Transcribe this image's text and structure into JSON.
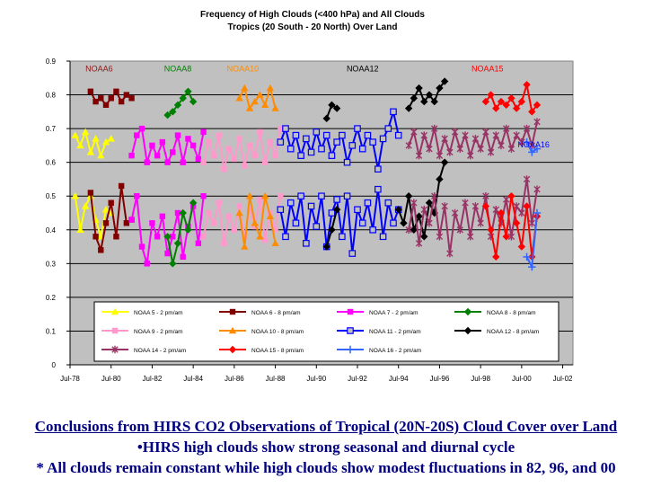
{
  "chart_data": {
    "type": "line",
    "title": "Frequency of High Clouds (<400 hPa) and All Clouds",
    "subtitle": "Tropics (20 South - 20 North) Over Land",
    "xlabel": "",
    "ylabel": "",
    "ylim": [
      0,
      0.9
    ],
    "xlim": [
      "Jul-78",
      "Jan-03"
    ],
    "grid": true,
    "legend_position": "bottom-inside",
    "plot_background": "#c0c0c0",
    "x_ticks": [
      "Jul-78",
      "Jul-80",
      "Jul-82",
      "Jul-84",
      "Jul-86",
      "Jul-88",
      "Jul-90",
      "Jul-92",
      "Jul-94",
      "Jul-96",
      "Jul-98",
      "Jul-00",
      "Jul-02"
    ],
    "y_ticks": [
      "0",
      "0.1",
      "0.2",
      "0.3",
      "0.4",
      "0.5",
      "0.6",
      "0.7",
      "0.8",
      "0.9"
    ],
    "annotations": [
      {
        "text": "NOAA6",
        "x": "Dec-79",
        "y": 0.885,
        "color": "#8b1a1a"
      },
      {
        "text": "NOAA8",
        "x": "Oct-83",
        "y": 0.885,
        "color": "#008000"
      },
      {
        "text": "NOAA10",
        "x": "Dec-86",
        "y": 0.885,
        "color": "#ff8c00"
      },
      {
        "text": "NOAA12",
        "x": "Oct-92",
        "y": 0.885,
        "color": "#000000"
      },
      {
        "text": "NOAA15",
        "x": "Nov-98",
        "y": 0.885,
        "color": "#ff0000"
      },
      {
        "text": "NOAA16",
        "x": "Feb-01",
        "y": 0.66,
        "color": "#0000ff"
      }
    ],
    "series": [
      {
        "name": "NOAA 5 - 2 pm/am",
        "color": "#ffff00",
        "marker": "triangle",
        "segments": [
          {
            "x": [
              1978.75,
              1979.0,
              1979.25,
              1979.5,
              1979.75,
              1980.0,
              1980.25,
              1980.5
            ],
            "values": [
              0.68,
              0.65,
              0.69,
              0.63,
              0.67,
              0.62,
              0.66,
              0.67
            ]
          },
          {
            "x": [
              1978.75,
              1979.0,
              1979.25,
              1979.5,
              1979.75,
              1980.0,
              1980.25,
              1980.5
            ],
            "values": [
              0.5,
              0.4,
              0.47,
              0.5,
              0.43,
              0.38,
              0.46,
              0.45
            ]
          }
        ]
      },
      {
        "name": "NOAA 6 - 8 pm/am",
        "color": "#800000",
        "marker": "square",
        "segments": [
          {
            "x": [
              1979.5,
              1979.75,
              1980.0,
              1980.25,
              1980.5,
              1980.75,
              1981.0,
              1981.25,
              1981.5
            ],
            "values": [
              0.81,
              0.78,
              0.79,
              0.77,
              0.79,
              0.81,
              0.78,
              0.8,
              0.79
            ]
          },
          {
            "x": [
              1979.5,
              1979.75,
              1980.0,
              1980.25,
              1980.5,
              1980.75,
              1981.0,
              1981.25,
              1981.5
            ],
            "values": [
              0.51,
              0.38,
              0.34,
              0.42,
              0.48,
              0.38,
              0.53,
              0.42,
              0.43
            ]
          }
        ]
      },
      {
        "name": "NOAA 7 - 2 pm/am",
        "color": "#ff00ff",
        "marker": "square",
        "segments": [
          {
            "x": [
              1981.5,
              1981.75,
              1982.0,
              1982.25,
              1982.5,
              1982.75,
              1983.0,
              1983.25,
              1983.5,
              1983.75,
              1984.0,
              1984.25,
              1984.5,
              1984.75,
              1985.0
            ],
            "values": [
              0.62,
              0.68,
              0.7,
              0.6,
              0.65,
              0.62,
              0.66,
              0.6,
              0.63,
              0.68,
              0.6,
              0.67,
              0.65,
              0.61,
              0.69
            ]
          },
          {
            "x": [
              1981.5,
              1981.75,
              1982.0,
              1982.25,
              1982.5,
              1982.75,
              1983.0,
              1983.25,
              1983.5,
              1983.75,
              1984.0,
              1984.25,
              1984.5,
              1984.75,
              1985.0
            ],
            "values": [
              0.43,
              0.5,
              0.35,
              0.3,
              0.42,
              0.38,
              0.44,
              0.33,
              0.38,
              0.45,
              0.32,
              0.41,
              0.47,
              0.36,
              0.5
            ]
          }
        ]
      },
      {
        "name": "NOAA 8 - 8 pm/am",
        "color": "#008000",
        "marker": "diamond",
        "segments": [
          {
            "x": [
              1983.25,
              1983.5,
              1983.75,
              1984.0,
              1984.25,
              1984.5
            ],
            "values": [
              0.74,
              0.75,
              0.77,
              0.79,
              0.81,
              0.78
            ]
          },
          {
            "x": [
              1983.25,
              1983.5,
              1983.75,
              1984.0,
              1984.25,
              1984.5
            ],
            "values": [
              0.38,
              0.3,
              0.36,
              0.45,
              0.4,
              0.48
            ]
          }
        ]
      },
      {
        "name": "NOAA 9 - 2 pm/am",
        "color": "#ff99cc",
        "marker": "square",
        "segments": [
          {
            "x": [
              1985.0,
              1985.25,
              1985.5,
              1985.75,
              1986.0,
              1986.25,
              1986.5,
              1986.75,
              1987.0,
              1987.25,
              1987.5,
              1987.75,
              1988.0,
              1988.25,
              1988.5,
              1988.75
            ],
            "values": [
              0.6,
              0.66,
              0.62,
              0.68,
              0.58,
              0.64,
              0.61,
              0.67,
              0.59,
              0.65,
              0.62,
              0.69,
              0.6,
              0.66,
              0.62,
              0.7
            ]
          },
          {
            "x": [
              1985.0,
              1985.25,
              1985.5,
              1985.75,
              1986.0,
              1986.25,
              1986.5,
              1986.75,
              1987.0,
              1987.25,
              1987.5,
              1987.75,
              1988.0,
              1988.25,
              1988.5,
              1988.75
            ],
            "values": [
              0.38,
              0.45,
              0.42,
              0.48,
              0.36,
              0.44,
              0.4,
              0.47,
              0.38,
              0.46,
              0.41,
              0.49,
              0.37,
              0.45,
              0.4,
              0.5
            ]
          }
        ]
      },
      {
        "name": "NOAA 10 - 8 pm/am",
        "color": "#ff8c00",
        "marker": "triangle",
        "segments": [
          {
            "x": [
              1986.75,
              1987.0,
              1987.25,
              1987.5,
              1987.75,
              1988.0,
              1988.25,
              1988.5
            ],
            "values": [
              0.79,
              0.82,
              0.76,
              0.78,
              0.8,
              0.77,
              0.82,
              0.76
            ]
          },
          {
            "x": [
              1986.75,
              1987.0,
              1987.25,
              1987.5,
              1987.75,
              1988.0,
              1988.25,
              1988.5
            ],
            "values": [
              0.45,
              0.35,
              0.5,
              0.42,
              0.38,
              0.5,
              0.44,
              0.36
            ]
          }
        ]
      },
      {
        "name": "NOAA 11 - 2 pm/am",
        "color": "#0000ff",
        "marker": "open-square",
        "segments": [
          {
            "x": [
              1988.75,
              1989.0,
              1989.25,
              1989.5,
              1989.75,
              1990.0,
              1990.25,
              1990.5,
              1990.75,
              1991.0,
              1991.25,
              1991.5,
              1991.75,
              1992.0,
              1992.25,
              1992.5,
              1992.75,
              1993.0,
              1993.25,
              1993.5,
              1993.75,
              1994.0,
              1994.25,
              1994.5
            ],
            "values": [
              0.66,
              0.7,
              0.64,
              0.68,
              0.62,
              0.67,
              0.63,
              0.69,
              0.64,
              0.68,
              0.62,
              0.66,
              0.68,
              0.6,
              0.65,
              0.7,
              0.64,
              0.68,
              0.66,
              0.58,
              0.67,
              0.7,
              0.75,
              0.68
            ]
          },
          {
            "x": [
              1988.75,
              1989.0,
              1989.25,
              1989.5,
              1989.75,
              1990.0,
              1990.25,
              1990.5,
              1990.75,
              1991.0,
              1991.25,
              1991.5,
              1991.75,
              1992.0,
              1992.25,
              1992.5,
              1992.75,
              1993.0,
              1993.25,
              1993.5,
              1993.75,
              1994.0,
              1994.25,
              1994.5
            ],
            "values": [
              0.46,
              0.38,
              0.48,
              0.42,
              0.5,
              0.36,
              0.47,
              0.41,
              0.5,
              0.35,
              0.45,
              0.49,
              0.38,
              0.5,
              0.33,
              0.46,
              0.42,
              0.48,
              0.4,
              0.52,
              0.38,
              0.48,
              0.42,
              0.46
            ]
          }
        ]
      },
      {
        "name": "NOAA 12 - 8 pm/am",
        "color": "#000000",
        "marker": "diamond",
        "segments": [
          {
            "x": [
              1991.0,
              1991.25,
              1991.5
            ],
            "values": [
              0.73,
              0.77,
              0.76
            ]
          },
          {
            "x": [
              1995.0,
              1995.25,
              1995.5,
              1995.75,
              1996.0,
              1996.25,
              1996.5,
              1996.75
            ],
            "values": [
              0.76,
              0.79,
              0.82,
              0.78,
              0.8,
              0.78,
              0.82,
              0.84
            ]
          },
          {
            "x": [
              1991.0,
              1991.25,
              1991.5
            ],
            "values": [
              0.35,
              0.4,
              0.46
            ]
          },
          {
            "x": [
              1994.5,
              1994.75,
              1995.0,
              1995.25,
              1995.5,
              1995.75,
              1996.0,
              1996.25,
              1996.5,
              1996.75
            ],
            "values": [
              0.46,
              0.42,
              0.5,
              0.4,
              0.44,
              0.38,
              0.48,
              0.45,
              0.55,
              0.6
            ]
          }
        ]
      },
      {
        "name": "NOAA 14 - 2 pm/am",
        "color": "#993366",
        "marker": "asterisk",
        "segments": [
          {
            "x": [
              1995.0,
              1995.25,
              1995.5,
              1995.75,
              1996.0,
              1996.25,
              1996.5,
              1996.75,
              1997.0,
              1997.25,
              1997.5,
              1997.75,
              1998.0,
              1998.25,
              1998.5,
              1998.75,
              1999.0,
              1999.25,
              1999.5,
              1999.75,
              2000.0,
              2000.25,
              2000.5,
              2000.75,
              2001.0,
              2001.25
            ],
            "values": [
              0.65,
              0.69,
              0.62,
              0.68,
              0.64,
              0.7,
              0.62,
              0.67,
              0.63,
              0.69,
              0.64,
              0.68,
              0.62,
              0.67,
              0.64,
              0.69,
              0.63,
              0.68,
              0.65,
              0.7,
              0.64,
              0.68,
              0.66,
              0.7,
              0.65,
              0.72
            ]
          },
          {
            "x": [
              1995.0,
              1995.25,
              1995.5,
              1995.75,
              1996.0,
              1996.25,
              1996.5,
              1996.75,
              1997.0,
              1997.25,
              1997.5,
              1997.75,
              1998.0,
              1998.25,
              1998.5,
              1998.75,
              1999.0,
              1999.25,
              1999.5,
              1999.75,
              2000.0,
              2000.25,
              2000.5,
              2000.75,
              2001.0,
              2001.25
            ],
            "values": [
              0.4,
              0.48,
              0.36,
              0.46,
              0.42,
              0.5,
              0.38,
              0.47,
              0.33,
              0.45,
              0.4,
              0.48,
              0.38,
              0.47,
              0.42,
              0.5,
              0.38,
              0.46,
              0.42,
              0.49,
              0.38,
              0.47,
              0.45,
              0.55,
              0.42,
              0.52
            ]
          }
        ]
      },
      {
        "name": "NOAA 15 - 8 pm/am",
        "color": "#ff0000",
        "marker": "diamond",
        "segments": [
          {
            "x": [
              1998.75,
              1999.0,
              1999.25,
              1999.5,
              1999.75,
              2000.0,
              2000.25,
              2000.5,
              2000.75,
              2001.0,
              2001.25
            ],
            "values": [
              0.78,
              0.8,
              0.76,
              0.78,
              0.77,
              0.79,
              0.76,
              0.78,
              0.83,
              0.75,
              0.77
            ]
          },
          {
            "x": [
              1998.75,
              1999.0,
              1999.25,
              1999.5,
              1999.75,
              2000.0,
              2000.25,
              2000.5,
              2000.75,
              2001.0,
              2001.25
            ],
            "values": [
              0.47,
              0.4,
              0.32,
              0.45,
              0.38,
              0.5,
              0.42,
              0.35,
              0.47,
              0.32,
              0.44
            ]
          }
        ]
      },
      {
        "name": "NOAA 16 - 2 pm/am",
        "color": "#3366ff",
        "marker": "plus",
        "segments": [
          {
            "x": [
              2000.75,
              2001.0,
              2001.25
            ],
            "values": [
              0.66,
              0.63,
              0.64
            ]
          },
          {
            "x": [
              2000.75,
              2001.0,
              2001.25
            ],
            "values": [
              0.32,
              0.29,
              0.45
            ]
          }
        ]
      }
    ]
  },
  "footer": {
    "line1": "Conclusions from HIRS CO2 Observations of Tropical (20N-20S) Cloud Cover over Land",
    "line2": "•HIRS high clouds show strong seasonal and diurnal cycle",
    "line3": "* All clouds remain constant while high clouds show modest fluctuations in 82, 96, and 00"
  }
}
